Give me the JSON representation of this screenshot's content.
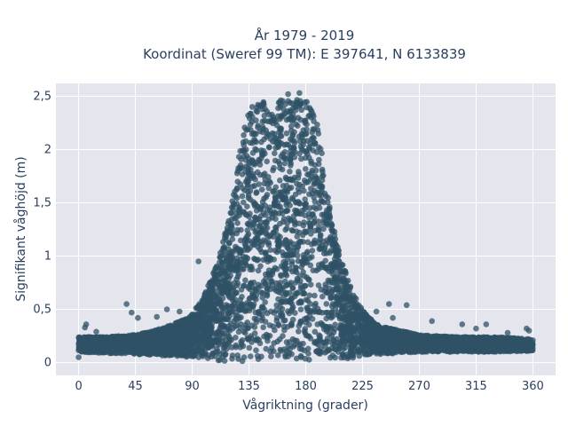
{
  "chart_data": {
    "type": "scatter",
    "title_line1": "År 1979 - 2019",
    "title_line2": "Koordinat (Sweref 99 TM): E 397641, N 6133839",
    "xlabel": "Vågriktning (grader)",
    "ylabel": "Signifikant våghöjd (m)",
    "xlim": [
      -18,
      378
    ],
    "ylim": [
      -0.12,
      2.62
    ],
    "xticks": [
      0,
      45,
      90,
      135,
      180,
      225,
      270,
      315,
      360
    ],
    "xtick_labels": [
      "0",
      "45",
      "90",
      "135",
      "180",
      "225",
      "270",
      "315",
      "360"
    ],
    "yticks": [
      0,
      0.5,
      1,
      1.5,
      2,
      2.5
    ],
    "ytick_labels": [
      "0",
      "0,5",
      "1",
      "1,5",
      "2",
      "2,5"
    ],
    "grid": true,
    "marker_color": "#2f5166",
    "plot_background": "#e5e5ee",
    "envelope": {
      "x": [
        0,
        20,
        45,
        60,
        75,
        90,
        100,
        110,
        120,
        125,
        130,
        135,
        140,
        150,
        160,
        170,
        180,
        185,
        190,
        195,
        200,
        205,
        210,
        215,
        220,
        225,
        230,
        240,
        255,
        270,
        300,
        330,
        360
      ],
      "y_max": [
        0.24,
        0.24,
        0.26,
        0.3,
        0.36,
        0.45,
        0.65,
        0.95,
        1.4,
        1.8,
        2.15,
        2.38,
        2.44,
        2.46,
        2.48,
        2.46,
        2.48,
        2.42,
        2.2,
        1.8,
        1.4,
        1.1,
        0.9,
        0.75,
        0.6,
        0.5,
        0.42,
        0.34,
        0.3,
        0.26,
        0.24,
        0.24,
        0.22
      ],
      "y_min": [
        0.1,
        0.09,
        0.08,
        0.07,
        0.06,
        0.05,
        0.03,
        0.02,
        0.01,
        0.01,
        0.01,
        0.01,
        0.01,
        0.01,
        0.01,
        0.01,
        0.01,
        0.01,
        0.01,
        0.01,
        0.02,
        0.02,
        0.03,
        0.04,
        0.05,
        0.06,
        0.07,
        0.08,
        0.09,
        0.1,
        0.1,
        0.1,
        0.11
      ]
    },
    "outliers": [
      {
        "x": 0,
        "y": 0.05
      },
      {
        "x": 5,
        "y": 0.33
      },
      {
        "x": 6,
        "y": 0.36
      },
      {
        "x": 14,
        "y": 0.29
      },
      {
        "x": 38,
        "y": 0.55
      },
      {
        "x": 42,
        "y": 0.47
      },
      {
        "x": 47,
        "y": 0.42
      },
      {
        "x": 62,
        "y": 0.43
      },
      {
        "x": 70,
        "y": 0.5
      },
      {
        "x": 80,
        "y": 0.48
      },
      {
        "x": 95,
        "y": 0.95
      },
      {
        "x": 100,
        "y": 0.62
      },
      {
        "x": 104,
        "y": 0.7
      },
      {
        "x": 166,
        "y": 2.52
      },
      {
        "x": 175,
        "y": 2.53
      },
      {
        "x": 236,
        "y": 0.48
      },
      {
        "x": 246,
        "y": 0.55
      },
      {
        "x": 249,
        "y": 0.42
      },
      {
        "x": 260,
        "y": 0.54
      },
      {
        "x": 280,
        "y": 0.39
      },
      {
        "x": 304,
        "y": 0.36
      },
      {
        "x": 315,
        "y": 0.32
      },
      {
        "x": 323,
        "y": 0.36
      },
      {
        "x": 340,
        "y": 0.28
      },
      {
        "x": 355,
        "y": 0.32
      },
      {
        "x": 357,
        "y": 0.3
      }
    ]
  }
}
